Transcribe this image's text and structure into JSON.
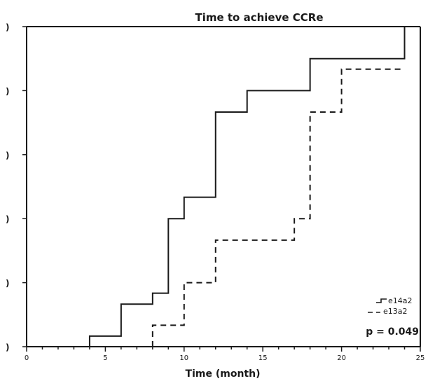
{
  "chart_data": {
    "type": "line",
    "title": "Time to achieve CCRe",
    "xlabel": "Time (month)",
    "ylabel": "",
    "xlim": [
      0,
      25
    ],
    "ylim": [
      0,
      100
    ],
    "x_ticks": [
      0,
      5,
      10,
      15,
      20,
      25
    ],
    "y_ticks": [
      0,
      20,
      40,
      60,
      80,
      100
    ],
    "y_tick_labels": [
      ")",
      ")",
      ")",
      ")",
      ")",
      ")"
    ],
    "grid": false,
    "legend_position": "bottom-right",
    "annotation": "p = 0.049",
    "series": [
      {
        "name": "e14a2",
        "style": "solid",
        "x": [
          0,
          4,
          4,
          6,
          6,
          8,
          8,
          9,
          9,
          10,
          10,
          12,
          12,
          14,
          14,
          18,
          18,
          24,
          24
        ],
        "y": [
          0,
          0,
          3.3,
          3.3,
          13.3,
          13.3,
          16.7,
          16.7,
          40,
          40,
          46.7,
          46.7,
          73.3,
          73.3,
          80,
          80,
          90,
          90,
          100
        ]
      },
      {
        "name": "e13a2",
        "style": "dashed",
        "x": [
          8,
          8,
          10,
          10,
          12,
          12,
          17,
          17,
          18,
          18,
          20,
          20,
          24
        ],
        "y": [
          0,
          6.7,
          6.7,
          20,
          20,
          33.3,
          33.3,
          40,
          40,
          73.3,
          73.3,
          86.7,
          86.7
        ]
      }
    ]
  }
}
